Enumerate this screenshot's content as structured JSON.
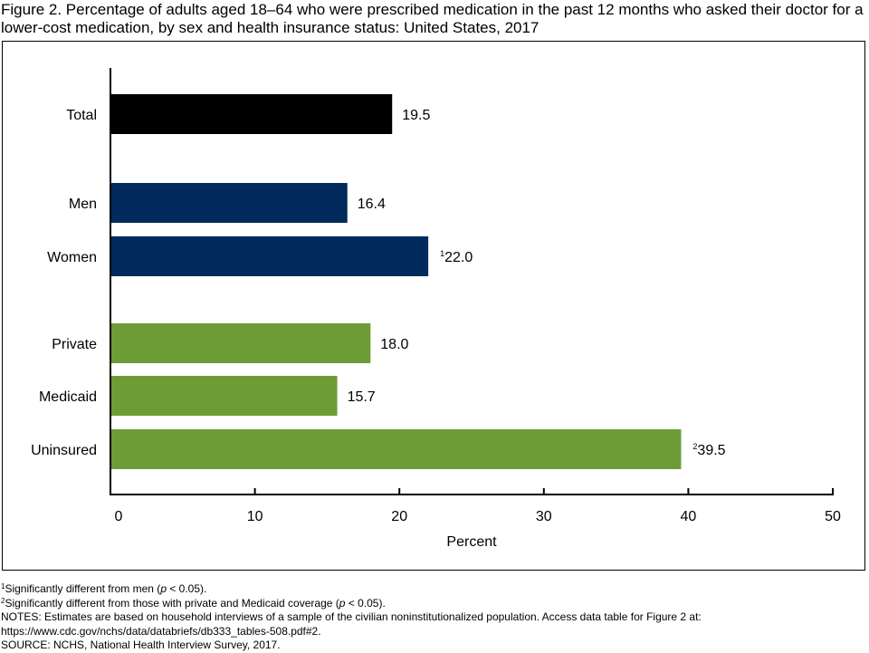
{
  "title": "Figure 2. Percentage of adults aged 18–64 who were prescribed medication in the past 12 months who asked their doctor for a lower-cost medication, by sex and health insurance status: United States, 2017",
  "colors": {
    "total": "#000000",
    "sex": "#002b5c",
    "insurance": "#6d9b35"
  },
  "chart_data": {
    "type": "bar",
    "orientation": "horizontal",
    "categories": [
      "Total",
      "Men",
      "Women",
      "Private",
      "Medicaid",
      "Uninsured"
    ],
    "groups": [
      "total",
      "sex",
      "sex",
      "insurance",
      "insurance",
      "insurance"
    ],
    "values": [
      19.5,
      16.4,
      22.0,
      18.0,
      15.7,
      39.5
    ],
    "value_labels": [
      "19.5",
      "16.4",
      "22.0",
      "18.0",
      "15.7",
      "39.5"
    ],
    "label_superscripts": [
      "",
      "",
      "1",
      "",
      "",
      "2"
    ],
    "xlabel": "Percent",
    "xlim": [
      0,
      50
    ],
    "xticks": [
      0,
      10,
      20,
      30,
      40,
      50
    ],
    "grid": false
  },
  "footnotes": {
    "fn1_mark": "1",
    "fn1_a": "Significantly different from men (",
    "fn1_p": "p",
    "fn1_b": " < 0.05).",
    "fn2_mark": "2",
    "fn2_a": "Significantly different from those with private and Medicaid coverage (",
    "fn2_p": "p",
    "fn2_b": " < 0.05).",
    "notes": "NOTES: Estimates are based on household interviews of a sample of the civilian noninstitutionalized population. Access data table for Figure 2 at:",
    "url": "https://www.cdc.gov/nchs/data/databriefs/db333_tables-508.pdf#2.",
    "source": "SOURCE: NCHS, National Health Interview Survey, 2017."
  }
}
